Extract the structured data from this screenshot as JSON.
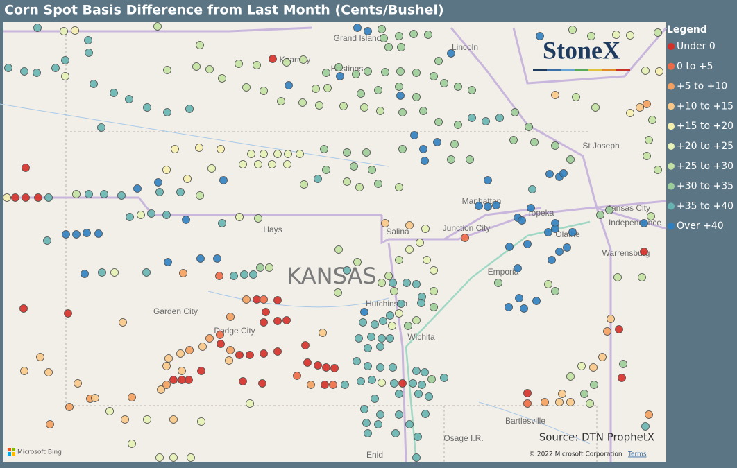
{
  "header": {
    "title": "Corn Spot Basis Difference from Last Month (Cents/Bushel)"
  },
  "logo": {
    "text": "StoneX"
  },
  "legend": {
    "title": "Legend",
    "items": [
      {
        "label": "Under 0",
        "color": "#d62f27"
      },
      {
        "label": "0 to +5",
        "color": "#ee6a45"
      },
      {
        "label": "+5 to +10",
        "color": "#f5a05e"
      },
      {
        "label": "+10 to +15",
        "color": "#f9c887"
      },
      {
        "label": "+15 to +20",
        "color": "#f6f0ae"
      },
      {
        "label": "+20 to +25",
        "color": "#e6f2b6"
      },
      {
        "label": "+25 to +30",
        "color": "#c3e2a2"
      },
      {
        "label": "+30 to +35",
        "color": "#9ccd98"
      },
      {
        "label": "+35 to +40",
        "color": "#66b4b1"
      },
      {
        "label": "Over +40",
        "color": "#2f7fc0"
      }
    ]
  },
  "map_labels": [
    "Grand Island",
    "Kearney",
    "Hastings",
    "Lincoln",
    "St Joseph",
    "Manhattan",
    "Topeka",
    "Kansas City",
    "Independence",
    "Junction City",
    "Olathe",
    "Hays",
    "Salina",
    "KANSAS",
    "Emporia",
    "Warrensburg",
    "Garden City",
    "Dodge City",
    "Hutchinson",
    "Wichita",
    "Bartlesville",
    "Osage I.R.",
    "Enid"
  ],
  "source": "Source: DTN ProphetX",
  "attribution": {
    "provider": "Microsoft Bing",
    "copyright": "© 2022 Microsoft Corporation",
    "terms": "Terms"
  }
}
